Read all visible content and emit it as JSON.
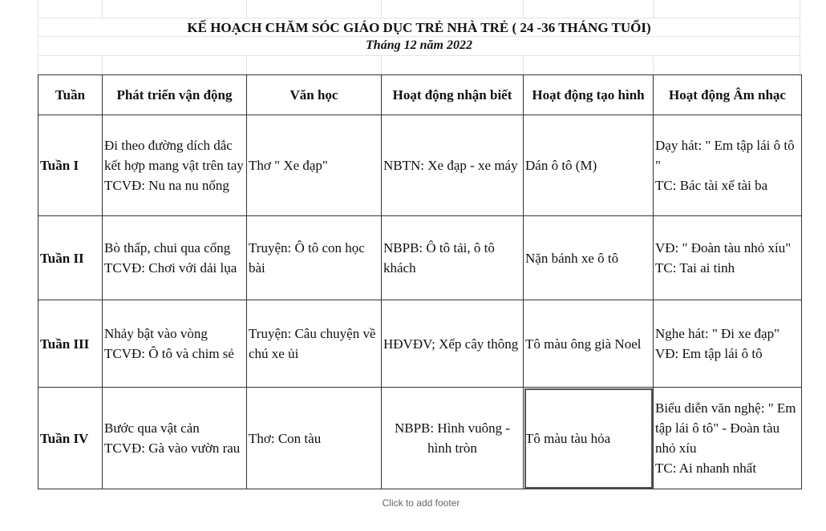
{
  "title": "KẾ HOẠCH CHĂM SÓC GIÁO DỤC TRẺ NHÀ TRẺ ( 24 -36 THÁNG TUỔI)",
  "subtitle": "Tháng 12 năm 2022",
  "headers": [
    "Tuần",
    "Phát triển vận động",
    "Văn học",
    "Hoạt động nhận biết",
    "Hoạt động tạo hình",
    "Hoạt động Âm nhạc"
  ],
  "rows": [
    [
      "Tuần I",
      "Đi theo đường dích dắc kết hợp mang vật trên tay\nTCVĐ: Nu na nu nống",
      "Thơ \" Xe đạp\"",
      "NBTN: Xe đạp - xe máy",
      "Dán ô tô (M)",
      "Dạy hát: \" Em tập lái ô tô \"\nTC: Bác tài xế tài ba"
    ],
    [
      "Tuần II",
      "Bò thấp, chui qua cổng\nTCVĐ: Chơi với dải lụa",
      "Truyện: Ô tô con học bài",
      "NBPB: Ô tô tải, ô tô khách",
      "Nặn bánh xe ô tô",
      "VĐ: \" Đoàn tàu nhỏ xíu\"\nTC: Tai ai tinh"
    ],
    [
      "Tuần III",
      "Nhảy bật vào vòng\nTCVĐ: Ô tô và chim sẻ",
      "Truyện: Câu chuyện về chú xe ủi",
      "HĐVĐV; Xếp cây thông",
      "Tô màu ông già Noel",
      "Nghe hát: \" Đi xe đạp\"\nVĐ: Em tập lái ô tô"
    ],
    [
      "Tuần IV",
      "Bước qua vật cản\nTCVĐ: Gà vào vườn rau",
      "Thơ: Con tàu",
      "NBPB: Hình vuông - hình tròn",
      "Tô màu tàu hỏa",
      "Biểu diễn văn nghệ: \" Em tập lái ô tô\" - Đoàn tàu nhỏ xíu\nTC: Ai nhanh nhất"
    ]
  ],
  "footer": "Click to add footer"
}
